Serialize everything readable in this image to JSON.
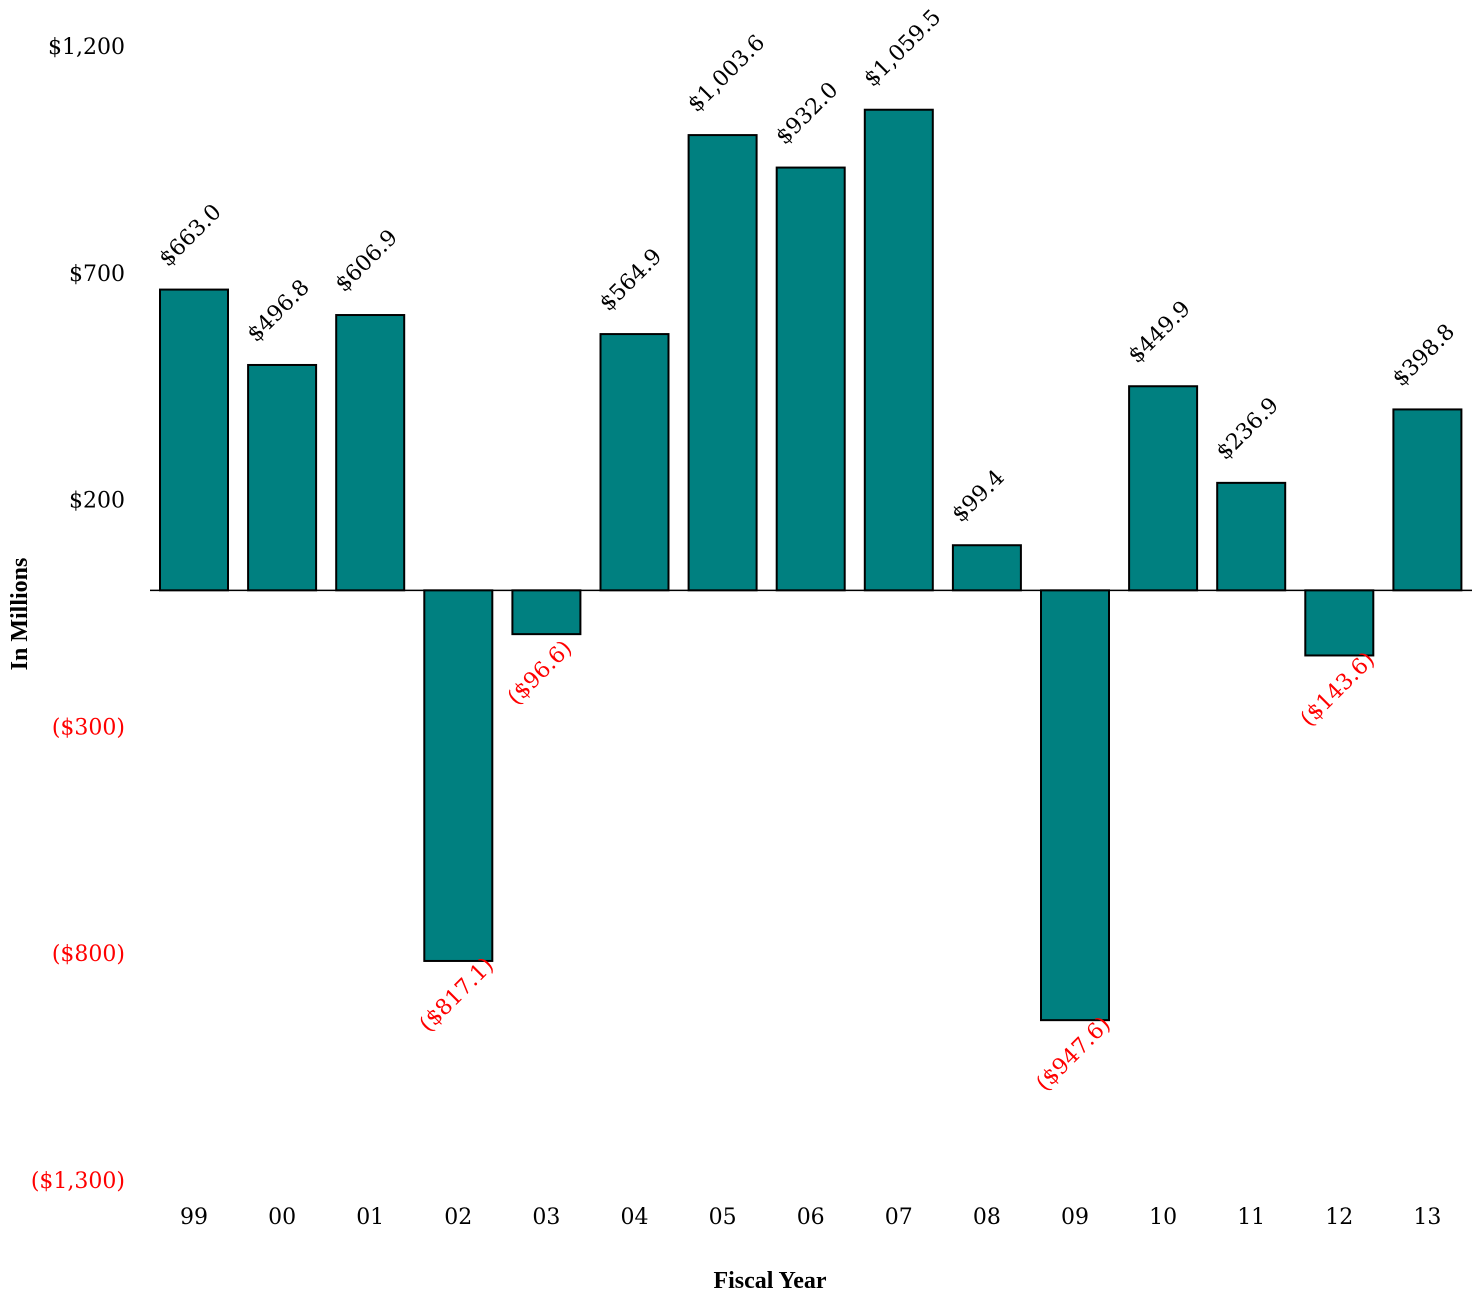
{
  "chart_data": {
    "type": "bar",
    "xlabel": "Fiscal Year",
    "ylabel": "In Millions",
    "ylim": [
      -1300,
      1200
    ],
    "y_ticks": [
      {
        "value": 1200,
        "label": "$1,200"
      },
      {
        "value": 700,
        "label": "$700"
      },
      {
        "value": 200,
        "label": "$200"
      },
      {
        "value": -300,
        "label": "($300)"
      },
      {
        "value": -800,
        "label": "($800)"
      },
      {
        "value": -1300,
        "label": "($1,300)"
      }
    ],
    "categories": [
      "99",
      "00",
      "01",
      "02",
      "03",
      "04",
      "05",
      "06",
      "07",
      "08",
      "09",
      "10",
      "11",
      "12",
      "13"
    ],
    "values": [
      663.0,
      496.8,
      606.9,
      -817.1,
      -96.6,
      564.9,
      1003.6,
      932.0,
      1059.5,
      99.4,
      -947.6,
      449.9,
      236.9,
      -143.6,
      398.8
    ],
    "data_labels": [
      "$663.0",
      "$496.8",
      "$606.9",
      "($817.1)",
      "($96.6)",
      "$564.9",
      "$1,003.6",
      "$932.0",
      "$1,059.5",
      "$99.4",
      "($947.6)",
      "$449.9",
      "$236.9",
      "($143.6)",
      "$398.8"
    ],
    "grid": false,
    "legend": "none",
    "colors": {
      "bar": "#008080",
      "bar_outline": "#000000",
      "positive_text": "#000000",
      "negative_text": "#ff0000"
    }
  }
}
